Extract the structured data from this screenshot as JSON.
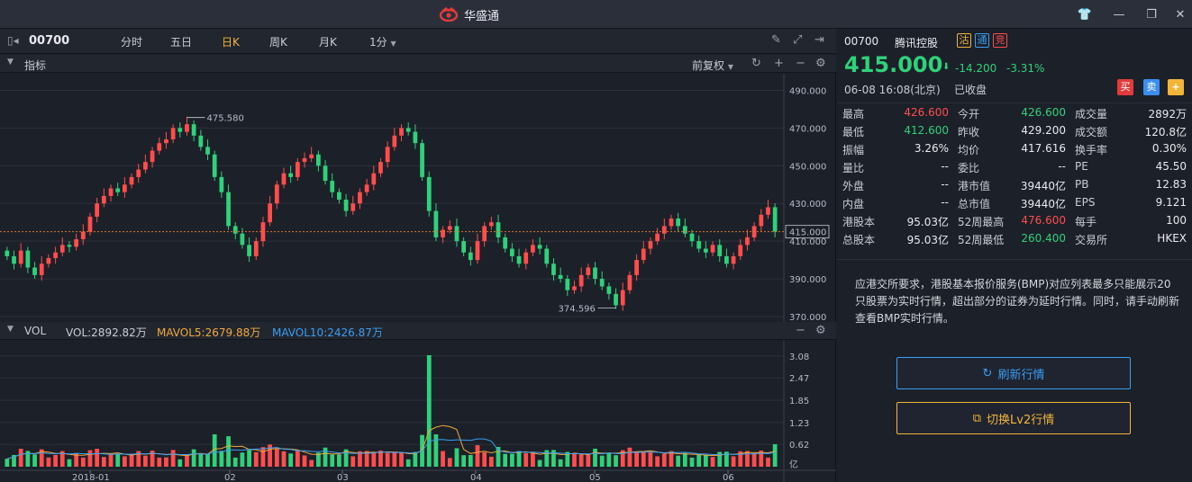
{
  "app": {
    "title": "华盛通"
  },
  "toolbar": {
    "code": "00700",
    "periods": [
      "分时",
      "五日",
      "日K",
      "周K",
      "月K",
      "1分"
    ],
    "active_period": "日K"
  },
  "indicator_bar": {
    "label": "指标",
    "adjust": "前复权"
  },
  "vol_bar": {
    "label": "VOL",
    "vol": "VOL:2892.82万",
    "mavol5": "MAVOL5:2679.88万",
    "mavol10": "MAVOL10:2426.87万"
  },
  "colors": {
    "up": "#ff4d4d",
    "down": "#2fd27a",
    "ma5": "#f2a93a",
    "ma10": "#3a9ef2",
    "accent": "#f2b53a"
  },
  "chart_data": [
    {
      "type": "candlestick",
      "title": "",
      "ylim": [
        370,
        495
      ],
      "yticks": [
        "490.000",
        "470.000",
        "450.000",
        "430.000",
        "410.000",
        "390.000",
        "370.000"
      ],
      "ytick_values": [
        490,
        470,
        450,
        430,
        410,
        390,
        370
      ],
      "xticks": [
        "2018-01",
        "02",
        "03",
        "04",
        "05",
        "06"
      ],
      "current_price_label": "415.000",
      "current_price": 415.0,
      "high_annotation": "475.580",
      "high_value": 475.58,
      "low_annotation": "374.596",
      "low_value": 374.596,
      "closes": [
        402,
        398,
        405,
        396,
        392,
        398,
        401,
        404,
        408,
        407,
        411,
        415,
        423,
        430,
        434,
        438,
        436,
        440,
        444,
        448,
        452,
        458,
        462,
        464,
        470,
        468,
        472,
        466,
        460,
        456,
        444,
        436,
        418,
        414,
        408,
        402,
        410,
        420,
        430,
        440,
        446,
        444,
        452,
        454,
        456,
        450,
        442,
        436,
        432,
        426,
        430,
        436,
        440,
        446,
        452,
        460,
        466,
        470,
        468,
        462,
        444,
        426,
        412,
        416,
        418,
        410,
        404,
        400,
        410,
        418,
        420,
        412,
        406,
        402,
        398,
        404,
        408,
        406,
        398,
        392,
        390,
        384,
        386,
        392,
        396,
        390,
        386,
        382,
        376,
        384,
        392,
        400,
        406,
        410,
        414,
        418,
        422,
        418,
        414,
        410,
        406,
        404,
        408,
        402,
        398,
        402,
        408,
        412,
        418,
        424,
        428,
        415
      ],
      "volume_yticks": [
        "3.08",
        "2.47",
        "1.85",
        "1.23",
        "0.62",
        "亿"
      ]
    }
  ],
  "quote": {
    "code": "00700",
    "name": "腾讯控股",
    "badges": [
      "沽",
      "通",
      "竞"
    ],
    "price": "415.000",
    "change": "-14.200",
    "change_pct": "-3.31%",
    "datetime": "06-08  16:08(北京)",
    "status": "已收盘",
    "buy": "买",
    "sell": "卖",
    "add": "+",
    "rows": [
      [
        [
          "最高",
          "426.600",
          "up"
        ],
        [
          "今开",
          "426.600",
          "dn"
        ],
        [
          "成交量",
          "2892万",
          "wh"
        ]
      ],
      [
        [
          "最低",
          "412.600",
          "dn"
        ],
        [
          "昨收",
          "429.200",
          "wh"
        ],
        [
          "成交额",
          "120.8亿",
          "wh"
        ]
      ],
      [
        [
          "振幅",
          "3.26%",
          "wh"
        ],
        [
          "均价",
          "417.616",
          "wh"
        ],
        [
          "换手率",
          "0.30%",
          "wh"
        ]
      ],
      [
        [
          "量比",
          "--",
          "wh"
        ],
        [
          "委比",
          "--",
          "wh"
        ],
        [
          "PE",
          "45.50",
          "wh"
        ]
      ],
      [
        [
          "外盘",
          "--",
          "wh"
        ],
        [
          "港市值",
          "39440亿",
          "wh"
        ],
        [
          "PB",
          "12.83",
          "wh"
        ]
      ],
      [
        [
          "内盘",
          "--",
          "wh"
        ],
        [
          "总市值",
          "39440亿",
          "wh"
        ],
        [
          "EPS",
          "9.121",
          "wh"
        ]
      ],
      [
        [
          "港股本",
          "95.03亿",
          "wh"
        ],
        [
          "52周最高",
          "476.600",
          "up"
        ],
        [
          "每手",
          "100",
          "wh"
        ]
      ],
      [
        [
          "总股本",
          "95.03亿",
          "wh"
        ],
        [
          "52周最低",
          "260.400",
          "dn"
        ],
        [
          "交易所",
          "HKEX",
          "wh"
        ]
      ]
    ]
  },
  "notice": {
    "text": "应港交所要求，港股基本报价服务(BMP)对应列表最多只能展示20只股票为实时行情，超出部分的证券为延时行情。同时，请手动刷新查看BMP实时行情。",
    "refresh": "刷新行情",
    "switch": "切换Lv2行情"
  }
}
